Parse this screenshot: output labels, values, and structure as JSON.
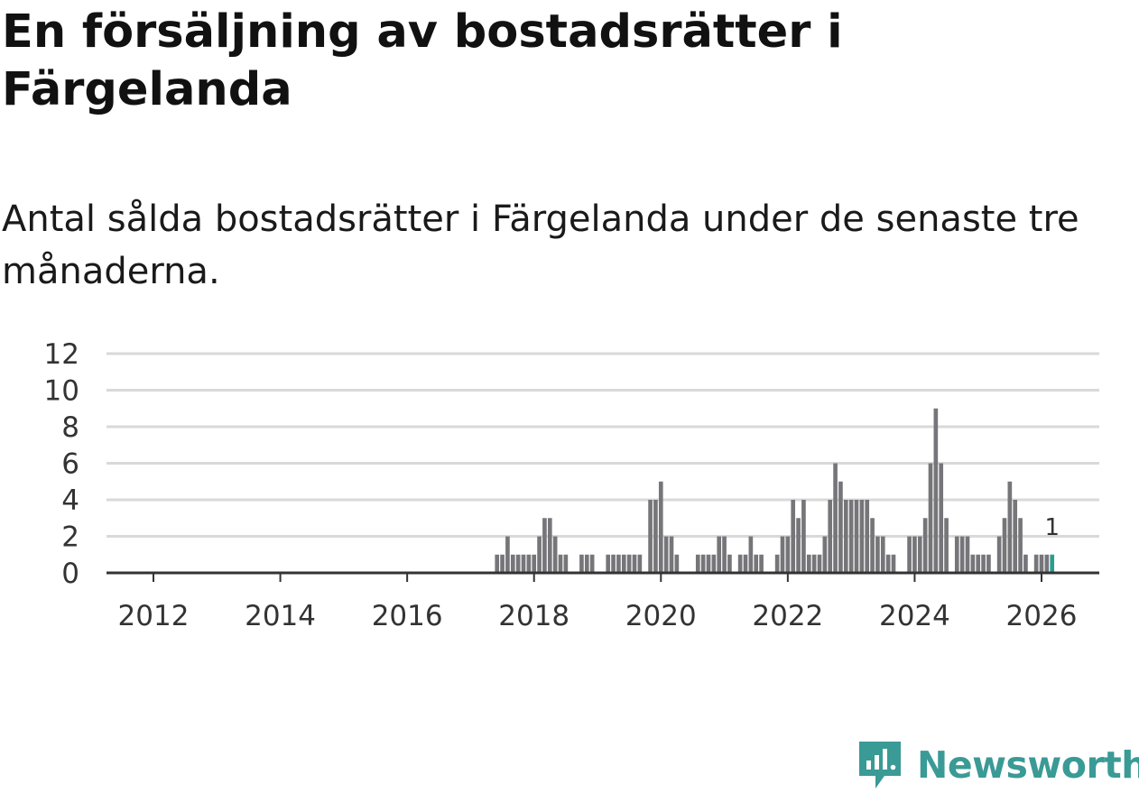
{
  "header": {
    "title": "En försäljning av bostadsrätter i Färgelanda",
    "subtitle": "Antal sålda bostadsrätter i Färgelanda under de senaste tre månaderna."
  },
  "brand": {
    "name": "Newsworthy"
  },
  "colors": {
    "bar": "#767579",
    "highlight": "#2a9d8f",
    "grid": "#d9d9d9",
    "axis": "#333333",
    "brand": "#3a9a96"
  },
  "chart_data": {
    "type": "bar",
    "title": "En försäljning av bostadsrätter i Färgelanda",
    "xlabel": "",
    "ylabel": "",
    "ylim": [
      0,
      12
    ],
    "yticks": [
      0,
      2,
      4,
      6,
      8,
      10,
      12
    ],
    "xticks": [
      "2012",
      "2014",
      "2016",
      "2018",
      "2020",
      "2022",
      "2024",
      "2026"
    ],
    "grid": true,
    "start_month": "2011-01",
    "series": [
      {
        "name": "Antal sålda bostadsrätter",
        "values": [
          0,
          0,
          0,
          0,
          0,
          0,
          0,
          0,
          0,
          0,
          0,
          0,
          0,
          0,
          0,
          0,
          0,
          0,
          0,
          0,
          0,
          0,
          0,
          0,
          0,
          0,
          0,
          0,
          0,
          0,
          0,
          0,
          0,
          0,
          0,
          0,
          0,
          0,
          0,
          0,
          0,
          0,
          0,
          0,
          0,
          0,
          0,
          0,
          0,
          0,
          0,
          0,
          0,
          0,
          0,
          0,
          0,
          0,
          0,
          0,
          0,
          0,
          0,
          0,
          0,
          0,
          0,
          0,
          0,
          0,
          0,
          0,
          0,
          0,
          0,
          0,
          0,
          1,
          1,
          2,
          1,
          1,
          1,
          1,
          1,
          2,
          3,
          3,
          2,
          1,
          1,
          0,
          0,
          1,
          1,
          1,
          0,
          0,
          1,
          1,
          1,
          1,
          1,
          1,
          1,
          0,
          4,
          4,
          5,
          2,
          2,
          1,
          0,
          0,
          0,
          1,
          1,
          1,
          1,
          2,
          2,
          1,
          0,
          1,
          1,
          2,
          1,
          1,
          0,
          0,
          1,
          2,
          2,
          4,
          3,
          4,
          1,
          1,
          1,
          2,
          4,
          6,
          5,
          4,
          4,
          4,
          4,
          4,
          3,
          2,
          2,
          1,
          1,
          0,
          0,
          2,
          2,
          2,
          3,
          6,
          9,
          6,
          3,
          0,
          2,
          2,
          2,
          1,
          1,
          1,
          1,
          0,
          2,
          3,
          5,
          4,
          3,
          1,
          0,
          1,
          1,
          1,
          1
        ]
      }
    ],
    "highlight": {
      "month": "2026-03",
      "value": 1,
      "label": "1"
    }
  }
}
